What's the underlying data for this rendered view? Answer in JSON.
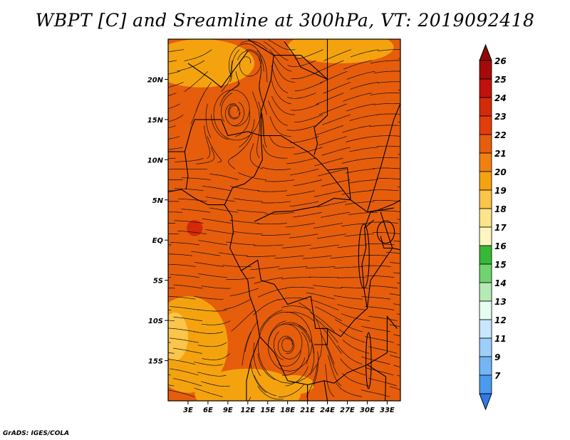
{
  "title": "WBPT [C] and Sreamline at 300hPa, VT: 2019092418",
  "footer": "GrADS: IGES/COLA",
  "map": {
    "lon_range": [
      0,
      35
    ],
    "lat_range": [
      -20,
      25
    ],
    "lat_ticks": [
      {
        "value": 20,
        "label": "20N"
      },
      {
        "value": 15,
        "label": "15N"
      },
      {
        "value": 10,
        "label": "10N"
      },
      {
        "value": 5,
        "label": "5N"
      },
      {
        "value": 0,
        "label": "EQ"
      },
      {
        "value": -5,
        "label": "5S"
      },
      {
        "value": -10,
        "label": "10S"
      },
      {
        "value": -15,
        "label": "15S"
      }
    ],
    "lon_ticks": [
      {
        "value": 3,
        "label": "3E"
      },
      {
        "value": 6,
        "label": "6E"
      },
      {
        "value": 9,
        "label": "9E"
      },
      {
        "value": 12,
        "label": "12E"
      },
      {
        "value": 15,
        "label": "15E"
      },
      {
        "value": 18,
        "label": "18E"
      },
      {
        "value": 21,
        "label": "21E"
      },
      {
        "value": 24,
        "label": "24E"
      },
      {
        "value": 27,
        "label": "27E"
      },
      {
        "value": 30,
        "label": "30E"
      },
      {
        "value": 33,
        "label": "33E"
      }
    ],
    "base_color": "#e65d0c",
    "field_patches": [
      {
        "color": "#f4a30f",
        "lon": 5,
        "lat": 22,
        "rx": 8,
        "ry": 3
      },
      {
        "color": "#f4a30f",
        "lon": 26,
        "lat": 24,
        "rx": 8,
        "ry": 2
      },
      {
        "color": "#f4a30f",
        "lon": 3,
        "lat": -13,
        "rx": 6,
        "ry": 6
      },
      {
        "color": "#f4a30f",
        "lon": 12,
        "lat": -19,
        "rx": 8,
        "ry": 3
      },
      {
        "color": "#fbc44a",
        "lon": 1,
        "lat": -12,
        "rx": 2,
        "ry": 3
      },
      {
        "color": "#d42a0a",
        "lon": 4,
        "lat": 1.5,
        "rx": 1.2,
        "ry": 1
      },
      {
        "color": "#f4a30f",
        "lon": 19,
        "lat": -18,
        "rx": 3,
        "ry": 1.2
      }
    ],
    "vortices": [
      {
        "lon": 18,
        "lat": -13,
        "turns": 3.2,
        "r": 5.5
      },
      {
        "lon": 10,
        "lat": 16,
        "turns": 2.0,
        "r": 4.0
      },
      {
        "lon": 12,
        "lat": 22,
        "turns": 1.6,
        "r": 3.0
      }
    ]
  },
  "colorbar": {
    "levels": [
      {
        "label": "26",
        "color": "#a50a0a"
      },
      {
        "label": "25",
        "color": "#c0120c"
      },
      {
        "label": "24",
        "color": "#d42a0a"
      },
      {
        "label": "23",
        "color": "#e13e0b"
      },
      {
        "label": "22",
        "color": "#e65d0c"
      },
      {
        "label": "21",
        "color": "#f0800f"
      },
      {
        "label": "20",
        "color": "#f4a30f"
      },
      {
        "label": "19",
        "color": "#fbc44a"
      },
      {
        "label": "18",
        "color": "#fde48a"
      },
      {
        "label": "17",
        "color": "#fef6c0"
      },
      {
        "label": "16",
        "color": "#37b837"
      },
      {
        "label": "15",
        "color": "#6fd36f"
      },
      {
        "label": "14",
        "color": "#b4ebb4"
      },
      {
        "label": "13",
        "color": "#e6fff0"
      },
      {
        "label": "12",
        "color": "#c8e6ff"
      },
      {
        "label": "11",
        "color": "#9ccff9"
      },
      {
        "label": "9",
        "color": "#73b6f5"
      },
      {
        "label": "7",
        "color": "#4a9bf0"
      }
    ],
    "tip_top_color": "#8e0808",
    "tip_bottom_color": "#2e7be6"
  }
}
